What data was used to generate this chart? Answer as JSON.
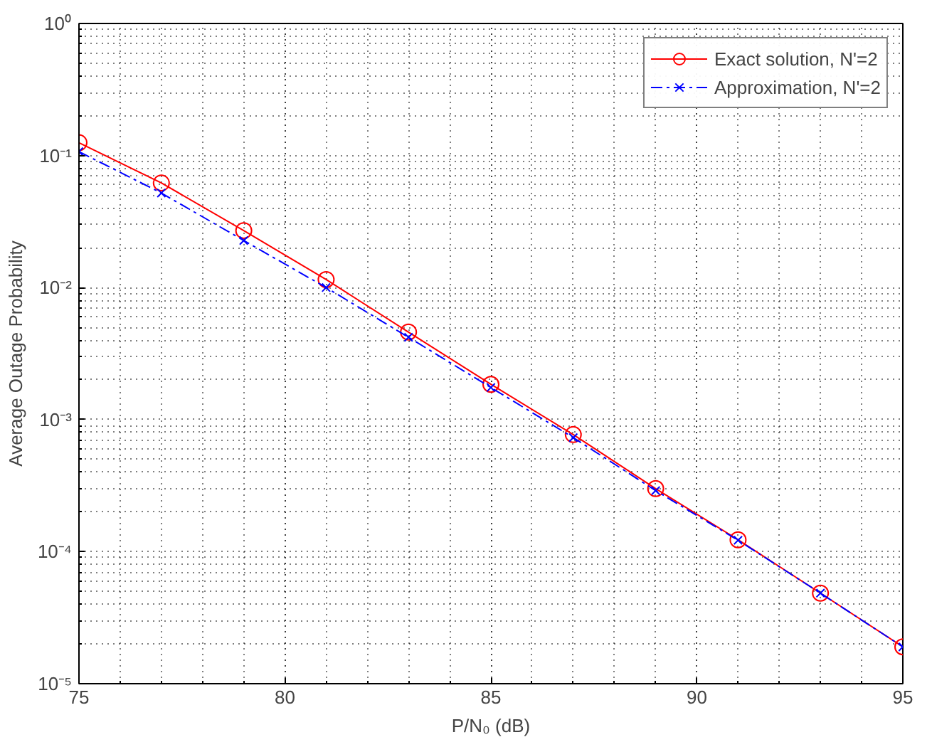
{
  "chart_data": {
    "type": "line",
    "xlabel": "P/N₀ (dB)",
    "ylabel": "Average Outage Probability",
    "x": [
      75,
      77,
      79,
      81,
      83,
      85,
      87,
      89,
      91,
      93,
      95
    ],
    "series": [
      {
        "name": "Exact solution, N'=2",
        "color": "#ff0000",
        "marker": "circle",
        "line_style": "solid",
        "values": [
          0.125,
          0.062,
          0.027,
          0.0115,
          0.0046,
          0.00185,
          0.00077,
          0.0003,
          0.000123,
          4.85e-05,
          1.9e-05
        ]
      },
      {
        "name": "Approximation, N'=2",
        "color": "#0000ff",
        "marker": "cross",
        "line_style": "dashed",
        "values": [
          0.107,
          0.052,
          0.0227,
          0.01,
          0.0042,
          0.00175,
          0.00073,
          0.00029,
          0.000122,
          4.85e-05,
          1.9e-05
        ]
      }
    ],
    "log": "y",
    "grid": true,
    "legend": "top right",
    "xlim": [
      75,
      95
    ],
    "xticks": [
      75,
      80,
      85,
      90,
      95
    ],
    "ylim": [
      1e-05,
      1
    ],
    "yticks": [
      {
        "value": 1e-05,
        "label": "10⁻⁵"
      },
      {
        "value": 0.0001,
        "label": "10⁻⁴"
      },
      {
        "value": 0.001,
        "label": "10⁻³"
      },
      {
        "value": 0.01,
        "label": "10⁻²"
      },
      {
        "value": 0.1,
        "label": "10⁻¹"
      },
      {
        "value": 1,
        "label": "10⁰"
      }
    ]
  }
}
